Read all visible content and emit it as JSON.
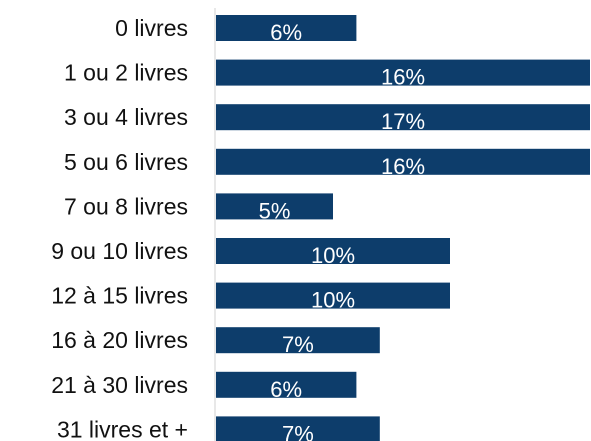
{
  "chart_data": {
    "type": "bar",
    "orientation": "horizontal",
    "categories": [
      "0 livres",
      "1 ou 2 livres",
      "3 ou 4 livres",
      "5 ou 6 livres",
      "7 ou 8 livres",
      "9 ou 10 livres",
      "12 à 15 livres",
      "16 à 20 livres",
      "21 à 30 livres",
      "31 livres et +"
    ],
    "values": [
      6,
      16,
      17,
      16,
      5,
      10,
      10,
      7,
      6,
      7
    ],
    "value_labels": [
      "6%",
      "16%",
      "17%",
      "16%",
      "5%",
      "10%",
      "10%",
      "7%",
      "6%",
      "7%"
    ],
    "unit": "%",
    "title": "",
    "xlabel": "",
    "ylabel": "",
    "grid": false,
    "bar_color": "#0d3d6b",
    "value_label_color": "#ffffff",
    "baseline_color": "#d0d0d0"
  }
}
